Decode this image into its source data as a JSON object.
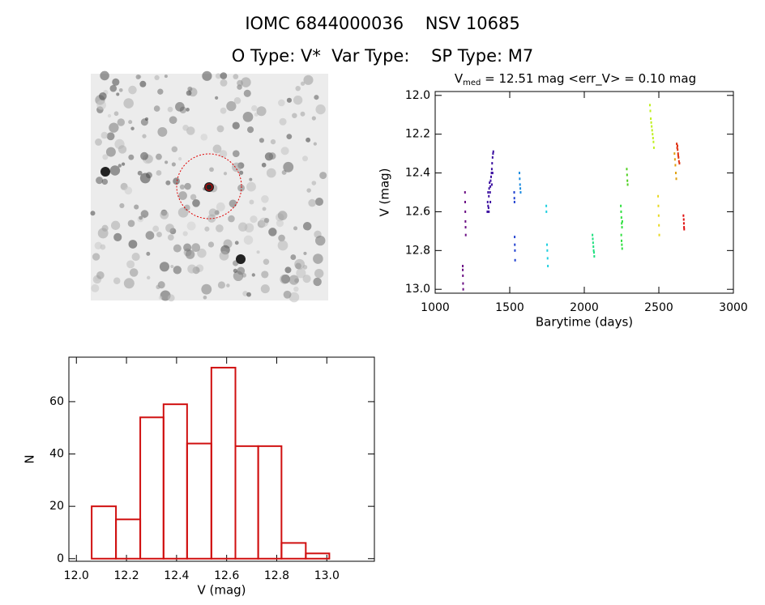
{
  "title": "IOMC 6844000036    NSV 10685",
  "subtitle": "O Type: V*  Var Type:    SP Type: M7",
  "chart_data": [
    {
      "type": "scatter",
      "title": [
        "V",
        "med",
        " = 12.51 mag <err_V> = 0.10 mag"
      ],
      "x_label": "Barytime (days)",
      "y_label": "V (mag)",
      "xlim": [
        1000,
        3000
      ],
      "xticks": [
        1000,
        1500,
        2000,
        2500,
        3000
      ],
      "ylim": [
        13.02,
        11.98
      ],
      "yticks": [
        {
          "value": 12,
          "label": "12.0"
        },
        12.2,
        12.4,
        12.6,
        12.8,
        {
          "value": 13,
          "label": "13.0"
        }
      ],
      "series": [
        {
          "color": "#6a0d83",
          "x": [
            1185,
            1185,
            1186,
            1187,
            1188,
            1200,
            1201,
            1202,
            1203,
            1204,
            1205
          ],
          "y": [
            12.88,
            12.9,
            12.93,
            12.97,
            13.0,
            12.5,
            12.55,
            12.6,
            12.65,
            12.68,
            12.72
          ]
        },
        {
          "color": "#3b0fa0",
          "x": [
            1350,
            1352,
            1355,
            1358,
            1360,
            1362,
            1365,
            1368,
            1370,
            1372,
            1375,
            1378,
            1380,
            1382,
            1385,
            1388,
            1390,
            1355,
            1360,
            1370,
            1380,
            1385
          ],
          "y": [
            12.6,
            12.55,
            12.5,
            12.58,
            12.52,
            12.48,
            12.45,
            12.5,
            12.47,
            12.44,
            12.42,
            12.4,
            12.38,
            12.35,
            12.32,
            12.3,
            12.29,
            12.57,
            12.6,
            12.55,
            12.46,
            12.4
          ]
        },
        {
          "color": "#2040d0",
          "x": [
            1530,
            1531,
            1532,
            1533,
            1534,
            1535,
            1536
          ],
          "y": [
            12.5,
            12.53,
            12.55,
            12.73,
            12.77,
            12.8,
            12.85
          ]
        },
        {
          "color": "#1a8be0",
          "x": [
            1565,
            1567,
            1569,
            1571,
            1573
          ],
          "y": [
            12.4,
            12.43,
            12.46,
            12.48,
            12.5
          ]
        },
        {
          "color": "#20d0e0",
          "x": [
            1745,
            1746,
            1750,
            1752,
            1754,
            1756
          ],
          "y": [
            12.57,
            12.6,
            12.77,
            12.8,
            12.84,
            12.88
          ]
        },
        {
          "color": "#20e080",
          "x": [
            2055,
            2057,
            2059,
            2061,
            2063,
            2065,
            2067
          ],
          "y": [
            12.72,
            12.74,
            12.76,
            12.78,
            12.8,
            12.81,
            12.83
          ]
        },
        {
          "color": "#30e040",
          "x": [
            2245,
            2247,
            2249,
            2251,
            2253,
            2255,
            2248,
            2250,
            2252,
            2254
          ],
          "y": [
            12.57,
            12.6,
            12.63,
            12.66,
            12.68,
            12.65,
            12.72,
            12.75,
            12.77,
            12.79
          ]
        },
        {
          "color": "#50d020",
          "x": [
            2285,
            2287,
            2289,
            2291
          ],
          "y": [
            12.38,
            12.41,
            12.44,
            12.46
          ]
        },
        {
          "color": "#c0f020",
          "x": [
            2440,
            2443,
            2446,
            2449,
            2452,
            2455,
            2458,
            2461,
            2464,
            2467
          ],
          "y": [
            12.05,
            12.08,
            12.12,
            12.14,
            12.16,
            12.18,
            12.2,
            12.22,
            12.24,
            12.27
          ]
        },
        {
          "color": "#e8d820",
          "x": [
            2495,
            2497,
            2499,
            2501,
            2503
          ],
          "y": [
            12.52,
            12.57,
            12.62,
            12.67,
            12.72
          ]
        },
        {
          "color": "#e0a010",
          "x": [
            2605,
            2608,
            2611,
            2614,
            2617
          ],
          "y": [
            12.3,
            12.33,
            12.36,
            12.4,
            12.43
          ]
        },
        {
          "color": "#e03010",
          "x": [
            2620,
            2623,
            2626,
            2629,
            2632,
            2635,
            2638,
            2625,
            2630
          ],
          "y": [
            12.25,
            12.27,
            12.28,
            12.3,
            12.32,
            12.34,
            12.35,
            12.26,
            12.31
          ]
        },
        {
          "color": "#e01010",
          "x": [
            2665,
            2667,
            2668,
            2669,
            2670
          ],
          "y": [
            12.62,
            12.64,
            12.66,
            12.68,
            12.69
          ]
        }
      ]
    },
    {
      "type": "histogram",
      "x_label": "V (mag)",
      "y_label": "N",
      "color": "#d01010",
      "bins": [
        12.061,
        12.158,
        12.255,
        12.348,
        12.442,
        12.539,
        12.635,
        12.726,
        12.819,
        12.916,
        13.01
      ],
      "values": [
        20,
        15,
        54,
        59,
        44,
        73,
        43,
        43,
        6,
        2
      ],
      "xlim": [
        11.97,
        13.19
      ],
      "xticks": [
        {
          "value": 12,
          "label": "12.0"
        },
        12.2,
        12.4,
        12.6,
        12.8,
        {
          "value": 13,
          "label": "13.0"
        }
      ],
      "ylim": [
        -1,
        77
      ],
      "yticks": [
        0,
        20,
        40,
        60
      ]
    }
  ]
}
